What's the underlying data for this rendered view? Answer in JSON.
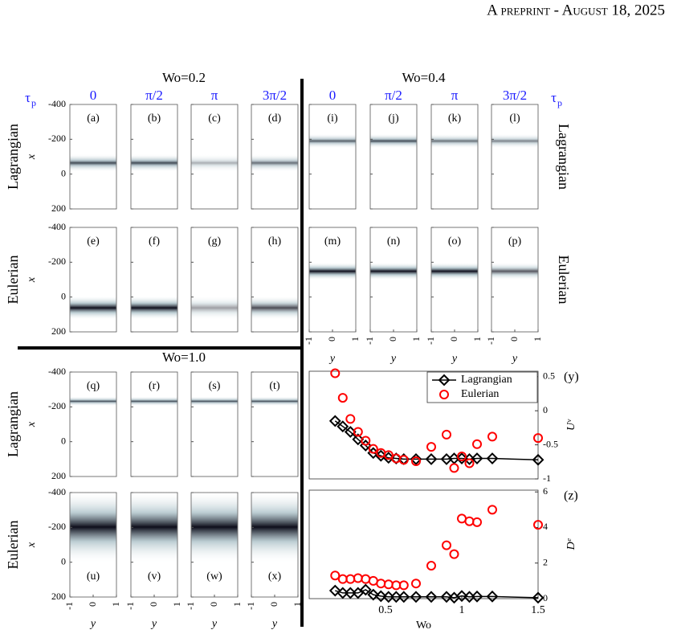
{
  "header": "A preprint - August 18, 2025",
  "figure": {
    "tau_symbol": {
      "base": "τ",
      "sub": "p"
    },
    "yticks": [
      -400,
      -200,
      0,
      200
    ],
    "y_axis_label": "x",
    "xticks": [
      -1,
      0,
      1
    ],
    "x_axis_label": "y",
    "groups": [
      {
        "title": "Wo=0.2",
        "tau": [
          "0",
          "π/2",
          "π",
          "3π/2"
        ],
        "rows": [
          {
            "label": "Lagrangian",
            "panels": [
              "(a)",
              "(b)",
              "(c)",
              "(d)"
            ]
          },
          {
            "label": "Eulerian",
            "panels": [
              "(e)",
              "(f)",
              "(g)",
              "(h)"
            ]
          }
        ]
      },
      {
        "title": "Wo=0.4",
        "tau": [
          "0",
          "π/2",
          "π",
          "3π/2"
        ],
        "rows": [
          {
            "label": "Lagrangian",
            "panels": [
              "(i)",
              "(j)",
              "(k)",
              "(l)"
            ]
          },
          {
            "label": "Eulerian",
            "panels": [
              "(m)",
              "(n)",
              "(o)",
              "(p)"
            ]
          }
        ]
      },
      {
        "title": "Wo=1.0",
        "rows": [
          {
            "label": "Lagrangian",
            "panels": [
              "(q)",
              "(r)",
              "(s)",
              "(t)"
            ]
          },
          {
            "label": "Eulerian",
            "panels": [
              "(u)",
              "(v)",
              "(w)",
              "(x)"
            ]
          }
        ]
      }
    ]
  },
  "chart_data": [
    {
      "type": "scatter",
      "panel_label": "(y)",
      "y_label": "Uᵛ",
      "legend": "upper right",
      "x": [
        0.17,
        0.22,
        0.27,
        0.32,
        0.37,
        0.42,
        0.47,
        0.52,
        0.57,
        0.62,
        0.7,
        0.8,
        0.9,
        0.95,
        1.0,
        1.05,
        1.1,
        1.2,
        1.5
      ],
      "xlim": [
        0,
        1.5
      ],
      "ylim": [
        -1,
        0.58
      ],
      "yticks": [
        0.5,
        0,
        -0.5,
        -1
      ],
      "series": [
        {
          "name": "Lagrangian",
          "color": "#000000",
          "marker": "diamond",
          "line": true,
          "values": [
            -0.15,
            -0.23,
            -0.31,
            -0.42,
            -0.51,
            -0.62,
            -0.66,
            -0.69,
            -0.7,
            -0.71,
            -0.71,
            -0.71,
            -0.71,
            -0.7,
            -0.7,
            -0.71,
            -0.7,
            -0.7,
            -0.72
          ]
        },
        {
          "name": "Eulerian",
          "color": "#ff0000",
          "marker": "circle",
          "line": false,
          "values": [
            0.55,
            0.19,
            -0.12,
            -0.31,
            -0.44,
            -0.56,
            -0.62,
            -0.65,
            -0.7,
            -0.72,
            -0.74,
            -0.53,
            -0.35,
            -0.84,
            -0.67,
            -0.77,
            -0.49,
            -0.38,
            -0.4
          ]
        }
      ]
    },
    {
      "type": "scatter",
      "panel_label": "(z)",
      "y_label": "Dᵉ",
      "x_label": "Wo",
      "x": [
        0.17,
        0.22,
        0.27,
        0.32,
        0.37,
        0.42,
        0.47,
        0.52,
        0.57,
        0.62,
        0.7,
        0.8,
        0.9,
        0.95,
        1.0,
        1.05,
        1.1,
        1.2,
        1.5
      ],
      "xlim": [
        0,
        1.5
      ],
      "xticks": [
        0.5,
        1,
        1.5
      ],
      "ylim": [
        0,
        6.1
      ],
      "yticks": [
        0,
        2,
        4,
        6
      ],
      "series": [
        {
          "color": "#000000",
          "marker": "diamond",
          "line": true,
          "values": [
            0.45,
            0.32,
            0.32,
            0.32,
            0.5,
            0.22,
            0.14,
            0.1,
            0.1,
            0.1,
            0.1,
            0.1,
            0.1,
            0.05,
            0.15,
            0.1,
            0.12,
            0.12,
            0.05
          ]
        },
        {
          "color": "#ff0000",
          "marker": "circle",
          "line": false,
          "values": [
            1.3,
            1.1,
            1.1,
            1.15,
            1.1,
            1.0,
            0.85,
            0.8,
            0.75,
            0.75,
            0.85,
            1.85,
            3.0,
            2.5,
            4.5,
            4.35,
            4.3,
            5.0,
            4.15
          ]
        }
      ]
    }
  ]
}
